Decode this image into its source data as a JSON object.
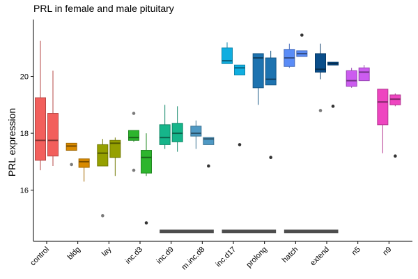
{
  "chart_data": {
    "type": "box",
    "title": "PRL in female and male pituitary",
    "xlabel": "",
    "ylabel": "PRL expression",
    "ylim": [
      14.2,
      22.0
    ],
    "y_ticks": [
      16,
      18,
      20
    ],
    "grid": false,
    "legend": "none",
    "categories": [
      "control",
      "bldg",
      "lay",
      "inc.d3",
      "inc.d9",
      "m.inc.d8",
      "inc.d17",
      "prolong",
      "hatch",
      "extend",
      "n5",
      "n9"
    ],
    "colors": [
      "#F8766D",
      "#DE8C00",
      "#B79F00",
      "#7CAE00",
      "#00BA38",
      "#00C08B",
      "#00BFC4",
      "#00B4F0",
      "#619CFF",
      "#C77CFF",
      "#F564E3",
      "#FF64B0"
    ],
    "box_colors": [
      "#F25F5C",
      "#D98A00",
      "#95A000",
      "#2DB52D",
      "#16B58A",
      "#4F99C4",
      "#10AEE0",
      "#1D73B0",
      "#5A8CF7",
      "#0A4E8A",
      "#CC5CF0",
      "#EE45C0"
    ],
    "series": [
      {
        "sex": "female",
        "boxes": [
          {
            "lower": 16.7,
            "q1": 17.05,
            "median": 17.75,
            "q3": 19.25,
            "upper": 21.25,
            "outliers": []
          },
          {
            "lower": 17.4,
            "q1": 17.4,
            "median": 17.55,
            "q3": 17.65,
            "upper": 17.65,
            "outliers": [
              16.9
            ]
          },
          {
            "lower": 16.85,
            "q1": 16.85,
            "median": 17.3,
            "q3": 17.6,
            "upper": 17.8,
            "outliers": [
              15.1
            ]
          },
          {
            "lower": 17.7,
            "q1": 17.75,
            "median": 17.85,
            "q3": 18.1,
            "upper": 18.1,
            "outliers": [
              16.7,
              18.7
            ]
          },
          {
            "lower": 17.45,
            "q1": 17.6,
            "median": 17.85,
            "q3": 18.3,
            "upper": 19.0,
            "outliers": []
          },
          {
            "lower": 17.45,
            "q1": 17.9,
            "median": 18.0,
            "q3": 18.25,
            "upper": 18.45,
            "outliers": []
          },
          {
            "lower": 20.45,
            "q1": 20.45,
            "median": 20.55,
            "q3": 21.0,
            "upper": 21.2,
            "outliers": []
          },
          {
            "lower": 19.0,
            "q1": 19.6,
            "median": 20.65,
            "q3": 20.8,
            "upper": 20.8,
            "outliers": []
          },
          {
            "lower": 20.3,
            "q1": 20.35,
            "median": 20.65,
            "q3": 20.95,
            "upper": 21.15,
            "outliers": []
          },
          {
            "lower": 19.9,
            "q1": 20.15,
            "median": 20.25,
            "q3": 20.8,
            "upper": 21.15,
            "outliers": [
              18.8
            ]
          },
          {
            "lower": 19.6,
            "q1": 19.65,
            "median": 19.85,
            "q3": 20.2,
            "upper": 20.3,
            "outliers": []
          },
          {
            "lower": 17.3,
            "q1": 18.3,
            "median": 19.1,
            "q3": 19.55,
            "upper": 19.55,
            "outliers": []
          }
        ]
      },
      {
        "sex": "male",
        "boxes": [
          {
            "lower": 16.85,
            "q1": 17.2,
            "median": 17.75,
            "q3": 18.7,
            "upper": 20.2,
            "outliers": []
          },
          {
            "lower": 16.3,
            "q1": 16.8,
            "median": 17.0,
            "q3": 17.1,
            "upper": 17.1,
            "outliers": []
          },
          {
            "lower": 16.5,
            "q1": 17.15,
            "median": 17.65,
            "q3": 17.75,
            "upper": 17.85,
            "outliers": []
          },
          {
            "lower": 16.5,
            "q1": 16.6,
            "median": 17.15,
            "q3": 17.4,
            "upper": 18.0,
            "outliers": [
              14.85
            ]
          },
          {
            "lower": 17.35,
            "q1": 17.7,
            "median": 18.0,
            "q3": 18.35,
            "upper": 18.95,
            "outliers": []
          },
          {
            "lower": 17.6,
            "q1": 17.6,
            "median": 17.8,
            "q3": 17.85,
            "upper": 17.85,
            "outliers": [
              16.85
            ]
          },
          {
            "lower": 20.05,
            "q1": 20.05,
            "median": 20.3,
            "q3": 20.4,
            "upper": 20.4,
            "outliers": [
              17.6
            ]
          },
          {
            "lower": 19.7,
            "q1": 19.7,
            "median": 19.9,
            "q3": 20.65,
            "upper": 20.9,
            "outliers": [
              17.15
            ]
          },
          {
            "lower": 20.7,
            "q1": 20.7,
            "median": 20.8,
            "q3": 20.9,
            "upper": 20.9,
            "outliers": [
              21.45
            ]
          },
          {
            "lower": 20.4,
            "q1": 20.4,
            "median": 20.45,
            "q3": 20.5,
            "upper": 20.5,
            "outliers": [
              18.95
            ]
          },
          {
            "lower": 19.85,
            "q1": 19.85,
            "median": 20.15,
            "q3": 20.3,
            "upper": 20.4,
            "outliers": []
          },
          {
            "lower": 18.95,
            "q1": 19.0,
            "median": 19.2,
            "q3": 19.35,
            "upper": 19.4,
            "outliers": [
              17.2
            ]
          }
        ]
      }
    ],
    "significance_bars": [
      {
        "from": "inc.d9",
        "to": "m.inc.d8",
        "y": 14.55
      },
      {
        "from": "inc.d17",
        "to": "prolong",
        "y": 14.55
      },
      {
        "from": "hatch",
        "to": "extend",
        "y": 14.55
      }
    ]
  }
}
